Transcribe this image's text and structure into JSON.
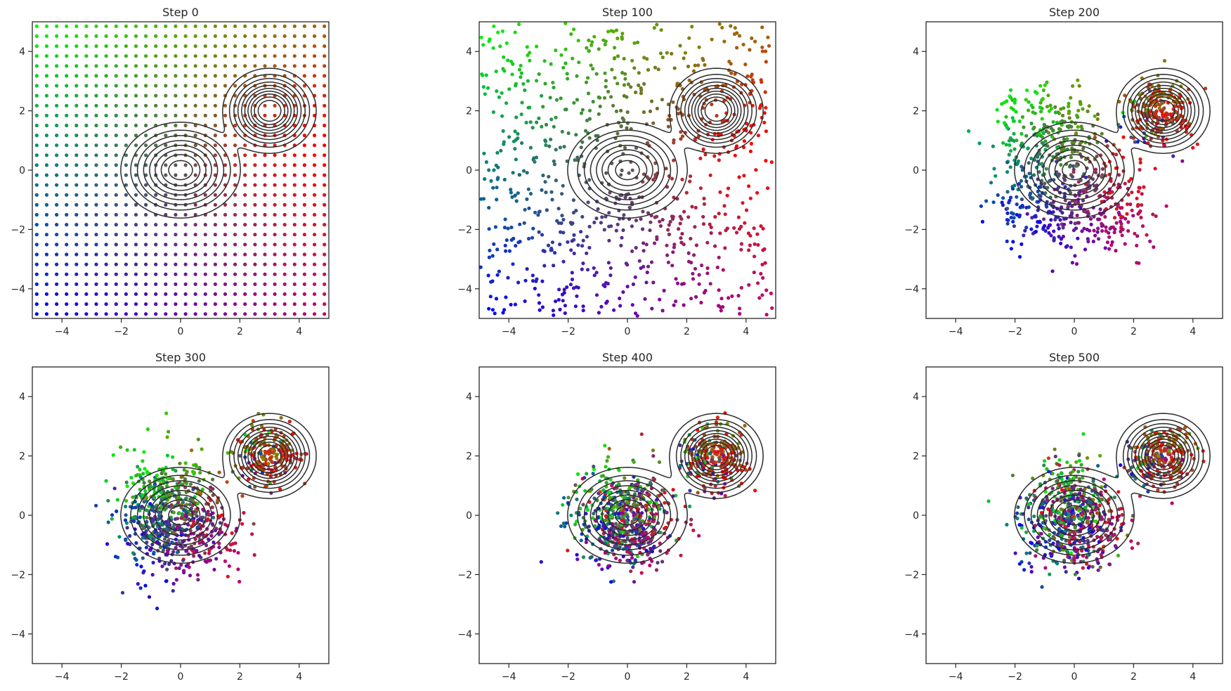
{
  "figure": {
    "rows": 2,
    "cols": 3
  },
  "colors": {
    "frame": "#262626",
    "contour": "#2b2b2b",
    "corner_top_left": "#00ff00",
    "corner_top_right": "#b35900",
    "corner_bottom_left": "#0000ff",
    "corner_bottom_right": "#cc0066",
    "mode_color": "#ff0000"
  },
  "target_density": {
    "description": "2-component Gaussian mixture shown as contours",
    "components": [
      {
        "mean": [
          0,
          0
        ],
        "std": [
          0.75,
          0.6
        ],
        "weight": 0.5
      },
      {
        "mean": [
          3,
          2
        ],
        "std": [
          0.55,
          0.5
        ],
        "weight": 0.5
      }
    ]
  },
  "chart_data": [
    {
      "type": "scatter",
      "title": "Step 0",
      "step": 0,
      "xlim": [
        -5,
        5
      ],
      "ylim": [
        -5,
        5
      ],
      "xticks": [
        -4,
        -2,
        0,
        2,
        4
      ],
      "yticks": [
        -4,
        -2,
        0,
        2,
        4
      ],
      "particles": "uniform grid over [-4.9, 4.9], colored by initial position"
    },
    {
      "type": "scatter",
      "title": "Step 100",
      "step": 100,
      "xlim": [
        -5,
        5
      ],
      "ylim": [
        -5,
        5
      ],
      "xticks": [
        -4,
        -2,
        0,
        2,
        4
      ],
      "yticks": [
        -4,
        -2,
        0,
        2,
        4
      ],
      "particles": "scattered uniformly, slight drift toward modes"
    },
    {
      "type": "scatter",
      "title": "Step 200",
      "step": 200,
      "xlim": [
        -5,
        5
      ],
      "ylim": [
        -5,
        5
      ],
      "xticks": [
        -4,
        -2,
        0,
        2,
        4
      ],
      "yticks": [
        -4,
        -2,
        0,
        2,
        4
      ],
      "particles": "contracting; red/brown particles cluster near (3, 2)"
    },
    {
      "type": "scatter",
      "title": "Step 300",
      "step": 300,
      "xlim": [
        -5,
        5
      ],
      "ylim": [
        -5,
        5
      ],
      "xticks": [
        -4,
        -2,
        0,
        2,
        4
      ],
      "yticks": [
        -4,
        -2,
        0,
        2,
        4
      ],
      "particles": "most particles near modes (0,0) and (3,2)"
    },
    {
      "type": "scatter",
      "title": "Step 400",
      "step": 400,
      "xlim": [
        -5,
        5
      ],
      "ylim": [
        -5,
        5
      ],
      "xticks": [
        -4,
        -2,
        0,
        2,
        4
      ],
      "yticks": [
        -4,
        -2,
        0,
        2,
        4
      ],
      "particles": "mixed colors concentrated on both modes"
    },
    {
      "type": "scatter",
      "title": "Step 500",
      "step": 500,
      "xlim": [
        -5,
        5
      ],
      "ylim": [
        -5,
        5
      ],
      "xticks": [
        -4,
        -2,
        0,
        2,
        4
      ],
      "yticks": [
        -4,
        -2,
        0,
        2,
        4
      ],
      "particles": "converged to target mixture"
    }
  ]
}
